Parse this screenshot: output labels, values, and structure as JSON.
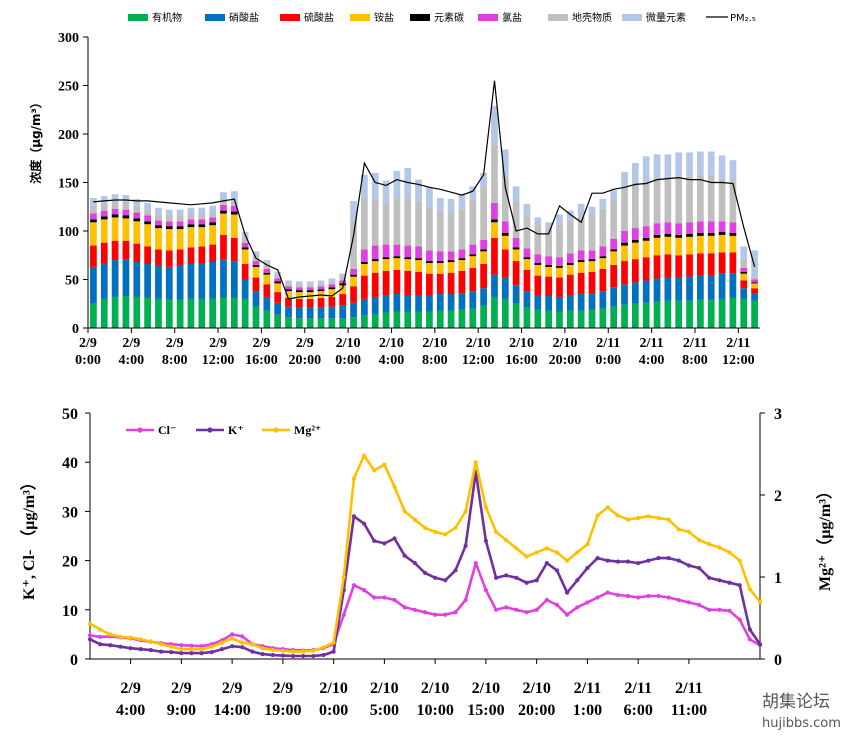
{
  "chart_data": [
    {
      "type": "bar",
      "stacked": true,
      "ylabel": "浓度（μg/m³）",
      "ylim": [
        0,
        300
      ],
      "yticks": [
        0,
        50,
        100,
        150,
        200,
        250,
        300
      ],
      "xtick_labels": [
        [
          "2/9",
          "0:00"
        ],
        [
          "2/9",
          "4:00"
        ],
        [
          "2/9",
          "8:00"
        ],
        [
          "2/9",
          "12:00"
        ],
        [
          "2/9",
          "16:00"
        ],
        [
          "2/9",
          "20:00"
        ],
        [
          "2/10",
          "0:00"
        ],
        [
          "2/10",
          "4:00"
        ],
        [
          "2/10",
          "8:00"
        ],
        [
          "2/10",
          "12:00"
        ],
        [
          "2/10",
          "16:00"
        ],
        [
          "2/10",
          "20:00"
        ],
        [
          "2/11",
          "0:00"
        ],
        [
          "2/11",
          "4:00"
        ],
        [
          "2/11",
          "8:00"
        ],
        [
          "2/11",
          "12:00"
        ]
      ],
      "x_hours": [
        0,
        1,
        2,
        3,
        4,
        5,
        6,
        7,
        8,
        9,
        10,
        11,
        12,
        13,
        14,
        15,
        16,
        17,
        18,
        19,
        20,
        21,
        22,
        23,
        24,
        25,
        26,
        27,
        28,
        29,
        30,
        31,
        32,
        33,
        34,
        35,
        36,
        37,
        38,
        39,
        40,
        41,
        42,
        43,
        44,
        45,
        46,
        47,
        48,
        49,
        50,
        51,
        52,
        53,
        54,
        55,
        56,
        57,
        58,
        59,
        60,
        61
      ],
      "legend_position": "top",
      "series": [
        {
          "name": "有机物",
          "color": "#00B050",
          "values": [
            25,
            30,
            32,
            33,
            32,
            31,
            30,
            29,
            29,
            30,
            30,
            30,
            31,
            31,
            30,
            22,
            18,
            14,
            11,
            10,
            10,
            10,
            10,
            10,
            11,
            13,
            14,
            16,
            17,
            17,
            17,
            17,
            18,
            18,
            19,
            20,
            23,
            32,
            30,
            25,
            21,
            19,
            18,
            17,
            18,
            18,
            19,
            20,
            22,
            24,
            25,
            26,
            27,
            28,
            28,
            28,
            29,
            29,
            30,
            31,
            30,
            28
          ]
        },
        {
          "name": "硝酸盐",
          "color": "#0070C0",
          "values": [
            38,
            37,
            38,
            38,
            36,
            35,
            34,
            34,
            35,
            36,
            37,
            38,
            40,
            38,
            20,
            16,
            14,
            12,
            11,
            11,
            11,
            11,
            12,
            13,
            15,
            17,
            18,
            18,
            18,
            17,
            17,
            17,
            17,
            17,
            17,
            18,
            18,
            23,
            22,
            19,
            17,
            15,
            15,
            15,
            16,
            17,
            17,
            18,
            20,
            21,
            22,
            23,
            24,
            24,
            24,
            25,
            25,
            25,
            26,
            25,
            11,
            8
          ]
        },
        {
          "name": "硫酸盐",
          "color": "#FF0000",
          "values": [
            22,
            21,
            20,
            19,
            19,
            18,
            17,
            17,
            17,
            17,
            17,
            18,
            25,
            24,
            16,
            14,
            13,
            11,
            9,
            9,
            9,
            10,
            10,
            12,
            17,
            24,
            25,
            25,
            25,
            25,
            24,
            22,
            21,
            22,
            23,
            24,
            25,
            38,
            29,
            25,
            22,
            20,
            20,
            20,
            21,
            22,
            22,
            23,
            23,
            24,
            24,
            24,
            24,
            24,
            23,
            23,
            23,
            23,
            22,
            22,
            8,
            5
          ]
        },
        {
          "name": "铵盐",
          "color": "#FFC000",
          "values": [
            24,
            24,
            24,
            23,
            23,
            23,
            22,
            22,
            21,
            21,
            20,
            20,
            22,
            24,
            15,
            11,
            10,
            9,
            7,
            7,
            7,
            7,
            8,
            9,
            10,
            12,
            12,
            12,
            12,
            12,
            12,
            11,
            11,
            11,
            11,
            12,
            13,
            16,
            14,
            12,
            11,
            11,
            10,
            10,
            10,
            11,
            11,
            11,
            14,
            16,
            17,
            17,
            18,
            18,
            18,
            18,
            18,
            18,
            18,
            17,
            7,
            5
          ]
        },
        {
          "name": "元素碳",
          "color": "#000000",
          "values": [
            3,
            3,
            3,
            3,
            3,
            3,
            3,
            3,
            3,
            3,
            3,
            3,
            3,
            3,
            2,
            2,
            2,
            2,
            2,
            2,
            2,
            2,
            2,
            2,
            2,
            2,
            2,
            2,
            2,
            2,
            2,
            2,
            2,
            2,
            2,
            2,
            2,
            3,
            3,
            2,
            2,
            2,
            2,
            2,
            2,
            2,
            2,
            2,
            2,
            3,
            3,
            3,
            3,
            3,
            3,
            3,
            3,
            3,
            3,
            3,
            2,
            1
          ]
        },
        {
          "name": "氯盐",
          "color": "#E040E0",
          "values": [
            6,
            6,
            6,
            6,
            6,
            6,
            5,
            5,
            5,
            5,
            5,
            5,
            6,
            6,
            5,
            4,
            4,
            3,
            3,
            3,
            3,
            3,
            3,
            3,
            6,
            13,
            14,
            13,
            12,
            12,
            12,
            11,
            10,
            9,
            9,
            10,
            10,
            17,
            12,
            10,
            9,
            9,
            9,
            9,
            10,
            10,
            9,
            10,
            11,
            12,
            12,
            12,
            12,
            12,
            12,
            12,
            12,
            12,
            11,
            11,
            4,
            3
          ]
        },
        {
          "name": "地壳物质",
          "color": "#BFBFBF",
          "values": [
            8,
            8,
            8,
            8,
            7,
            6,
            6,
            6,
            6,
            6,
            6,
            6,
            6,
            5,
            6,
            6,
            5,
            4,
            3,
            3,
            3,
            3,
            3,
            4,
            50,
            52,
            48,
            42,
            47,
            49,
            46,
            45,
            42,
            40,
            42,
            46,
            54,
            60,
            48,
            38,
            33,
            30,
            30,
            34,
            34,
            35,
            37,
            39,
            40,
            45,
            45,
            46,
            46,
            47,
            48,
            47,
            47,
            47,
            44,
            42,
            8,
            2
          ]
        },
        {
          "name": "微量元素",
          "color": "#B4C7E7",
          "values": [
            8,
            7,
            7,
            7,
            7,
            7,
            7,
            6,
            6,
            6,
            6,
            6,
            7,
            10,
            5,
            4,
            4,
            3,
            3,
            3,
            3,
            3,
            3,
            3,
            20,
            25,
            27,
            24,
            29,
            31,
            23,
            20,
            13,
            14,
            15,
            14,
            15,
            40,
            26,
            15,
            13,
            8,
            5,
            10,
            10,
            13,
            8,
            10,
            10,
            16,
            22,
            26,
            25,
            23,
            25,
            25,
            25,
            25,
            24,
            22,
            14,
            28
          ]
        }
      ],
      "pm25": {
        "name": "PM₂.₅",
        "color": "#000000",
        "values": [
          130,
          131,
          132,
          132,
          131,
          131,
          130,
          129,
          128,
          127,
          128,
          129,
          131,
          133,
          96,
          72,
          65,
          60,
          30,
          32,
          33,
          34,
          33,
          41,
          95,
          170,
          150,
          147,
          153,
          150,
          148,
          145,
          143,
          140,
          137,
          141,
          158,
          255,
          145,
          100,
          103,
          97,
          97,
          126,
          117,
          109,
          139,
          139,
          143,
          145,
          148,
          149,
          153,
          154,
          155,
          153,
          153,
          150,
          150,
          149,
          104,
          63
        ]
      }
    },
    {
      "type": "line",
      "ylabel": "K⁺, Cl- （μg/m³）",
      "y2label": "Mg²⁺（μg/m³）",
      "ylim": [
        0,
        50
      ],
      "yticks": [
        0,
        10,
        20,
        30,
        40,
        50
      ],
      "y2lim": [
        0,
        3
      ],
      "y2ticks": [
        0,
        1,
        2,
        3
      ],
      "xtick_labels": [
        [
          "2/9",
          "4:00"
        ],
        [
          "2/9",
          "9:00"
        ],
        [
          "2/9",
          "14:00"
        ],
        [
          "2/9",
          "19:00"
        ],
        [
          "2/10",
          "0:00"
        ],
        [
          "2/10",
          "5:00"
        ],
        [
          "2/10",
          "10:00"
        ],
        [
          "2/10",
          "15:00"
        ],
        [
          "2/10",
          "20:00"
        ],
        [
          "2/11",
          "1:00"
        ],
        [
          "2/11",
          "6:00"
        ],
        [
          "2/11",
          "11:00"
        ]
      ],
      "legend_position": "top-left",
      "series": [
        {
          "name": "Cl⁻",
          "color": "#E040E0",
          "axis": "left",
          "values": [
            4.8,
            4.5,
            4.6,
            4.4,
            4.2,
            3.8,
            3.5,
            3.2,
            3.0,
            2.8,
            2.7,
            2.6,
            3.0,
            3.8,
            5.0,
            4.6,
            3.0,
            2.6,
            2.2,
            2.0,
            1.8,
            1.7,
            1.8,
            2.2,
            3.0,
            9.0,
            15.0,
            14.0,
            12.5,
            12.5,
            12.0,
            10.5,
            10.0,
            9.5,
            9.0,
            9.0,
            9.5,
            12.0,
            19.5,
            14.0,
            10.0,
            10.5,
            10.0,
            9.5,
            10.0,
            12.0,
            11.0,
            9.0,
            10.5,
            11.5,
            12.5,
            13.5,
            13.0,
            12.8,
            12.5,
            12.8,
            12.8,
            12.5,
            12.0,
            11.5,
            11.0,
            10.0,
            10.0,
            9.8,
            8.0,
            4.0,
            2.8
          ]
        },
        {
          "name": "K⁺",
          "color": "#7030A0",
          "axis": "left",
          "values": [
            4.0,
            3.0,
            2.8,
            2.5,
            2.2,
            2.0,
            1.8,
            1.5,
            1.4,
            1.2,
            1.2,
            1.2,
            1.4,
            2.0,
            2.6,
            2.4,
            1.5,
            1.0,
            0.8,
            0.7,
            0.6,
            0.6,
            0.6,
            0.8,
            1.5,
            14.0,
            29.0,
            27.5,
            24.0,
            23.5,
            24.5,
            21.0,
            19.5,
            17.5,
            16.5,
            16.0,
            18.0,
            23.0,
            38.0,
            24.0,
            16.5,
            17.0,
            16.5,
            15.5,
            16.0,
            19.5,
            18.0,
            13.5,
            16.0,
            18.5,
            20.5,
            20.0,
            19.8,
            19.8,
            19.5,
            20.0,
            20.5,
            20.5,
            20.0,
            19.0,
            18.5,
            16.5,
            16.0,
            15.5,
            15.0,
            6.0,
            3.0
          ]
        },
        {
          "name": "Mg²⁺",
          "color": "#FFC000",
          "axis": "right",
          "values": [
            0.43,
            0.36,
            0.3,
            0.27,
            0.26,
            0.24,
            0.21,
            0.18,
            0.15,
            0.12,
            0.12,
            0.12,
            0.15,
            0.2,
            0.25,
            0.2,
            0.18,
            0.13,
            0.11,
            0.1,
            0.09,
            0.09,
            0.1,
            0.14,
            0.2,
            1.0,
            2.2,
            2.48,
            2.3,
            2.37,
            2.1,
            1.8,
            1.7,
            1.6,
            1.55,
            1.52,
            1.6,
            1.8,
            2.4,
            1.85,
            1.55,
            1.45,
            1.35,
            1.25,
            1.3,
            1.35,
            1.3,
            1.2,
            1.3,
            1.4,
            1.75,
            1.85,
            1.75,
            1.7,
            1.72,
            1.74,
            1.72,
            1.7,
            1.58,
            1.55,
            1.45,
            1.4,
            1.36,
            1.3,
            1.2,
            0.85,
            0.7
          ]
        }
      ]
    }
  ],
  "watermark": {
    "cn": "胡集论坛",
    "url": "hujibbs.com"
  }
}
